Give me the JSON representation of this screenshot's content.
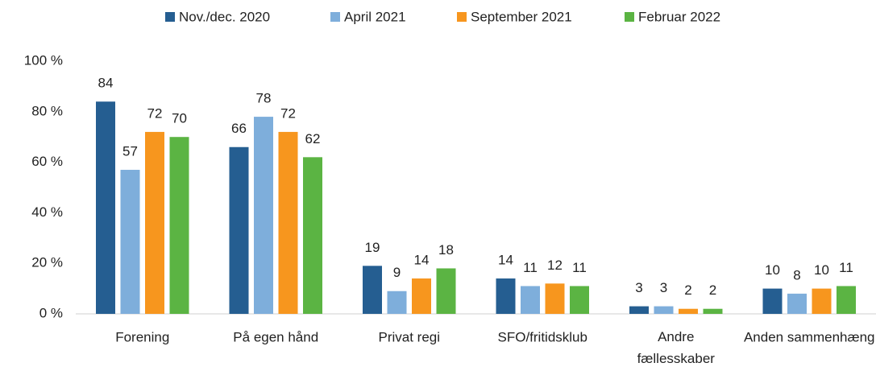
{
  "chart_data": {
    "type": "bar",
    "categories": [
      "Forening",
      "På egen hånd",
      "Privat regi",
      "SFO/fritidsklub",
      "Andre fællesskaber",
      "Anden sammenhæng"
    ],
    "series": [
      {
        "name": "Nov./dec. 2020",
        "color": "#255e91",
        "values": [
          84,
          66,
          19,
          14,
          3,
          10
        ]
      },
      {
        "name": "April 2021",
        "color": "#7eaedb",
        "values": [
          57,
          78,
          9,
          11,
          3,
          8
        ]
      },
      {
        "name": "September 2021",
        "color": "#f7961e",
        "values": [
          72,
          72,
          14,
          12,
          2,
          10
        ]
      },
      {
        "name": "Februar 2022",
        "color": "#5bb443",
        "values": [
          70,
          62,
          18,
          11,
          2,
          11
        ]
      }
    ],
    "ylim": [
      0,
      100
    ],
    "yticks": [
      {
        "value": 0,
        "label": "0 %"
      },
      {
        "value": 20,
        "label": "20 %"
      },
      {
        "value": 40,
        "label": "40 %"
      },
      {
        "value": 60,
        "label": "60 %"
      },
      {
        "value": 80,
        "label": "80 %"
      },
      {
        "value": 100,
        "label": "100 %"
      }
    ],
    "grid": false,
    "legend": "top"
  }
}
